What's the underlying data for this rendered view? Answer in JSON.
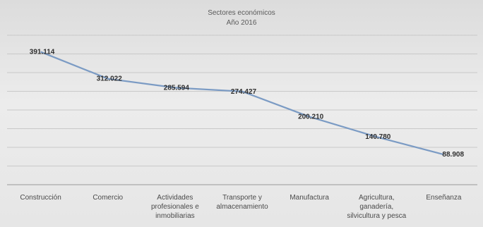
{
  "chart_data": {
    "type": "line",
    "title": "Sectores económicos",
    "subtitle": "Año 2016",
    "xlabel": "",
    "ylabel": "",
    "grid": true,
    "legend": "none",
    "ylim": [
      0,
      440000
    ],
    "categories": [
      [
        "Construcción"
      ],
      [
        "Comercio"
      ],
      [
        "Actividades",
        "profesionales e",
        "inmobiliarias"
      ],
      [
        "Transporte y",
        "almacenamiento"
      ],
      [
        "Manufactura"
      ],
      [
        "Agricultura,",
        "ganadería,",
        "silvicultura y pesca"
      ],
      [
        "Enseñanza"
      ]
    ],
    "values": [
      391114,
      312022,
      285594,
      274427,
      200210,
      140780,
      88908
    ],
    "data_labels": [
      "391.114",
      "312.022",
      "285.594",
      "274.427",
      "200.210",
      "140.780",
      "88.908"
    ],
    "colors": {
      "line": "#7b9bc4",
      "grid": "#c9c9c9",
      "background": "#e9e9e9"
    }
  }
}
